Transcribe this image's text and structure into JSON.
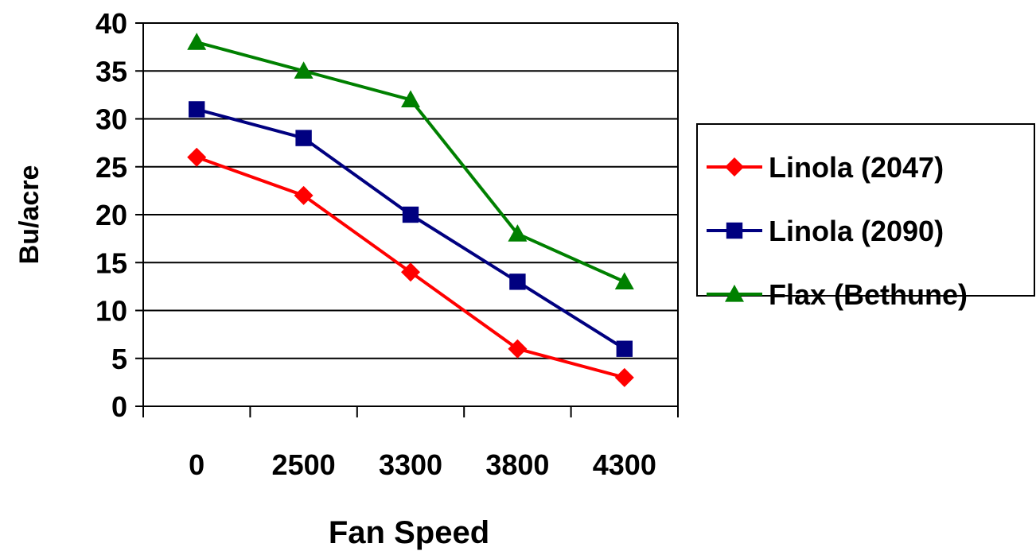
{
  "chart_data": {
    "type": "line",
    "title": "",
    "xlabel": "Fan Speed",
    "ylabel": "Bu/acre",
    "categories": [
      "0",
      "2500",
      "3300",
      "3800",
      "4300"
    ],
    "ylim": [
      0,
      40
    ],
    "yticks": [
      "0",
      "5",
      "10",
      "15",
      "20",
      "25",
      "30",
      "35",
      "40"
    ],
    "grid": "horizontal",
    "legend_position": "right",
    "series": [
      {
        "name": "Linola (2047)",
        "color": "#ff0000",
        "marker": "diamond",
        "values": [
          26,
          22,
          14,
          6,
          3
        ]
      },
      {
        "name": "Linola (2090)",
        "color": "#000080",
        "marker": "square",
        "values": [
          31,
          28,
          20,
          13,
          6
        ]
      },
      {
        "name": "Flax (Bethune)",
        "color": "#008000",
        "marker": "triangle",
        "values": [
          38,
          35,
          32,
          18,
          13
        ]
      }
    ]
  }
}
